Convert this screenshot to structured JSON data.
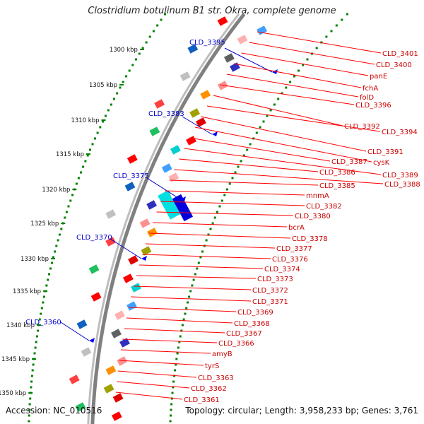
{
  "title": "Clostridium botulinum B1 str. Okra, complete genome",
  "footer": {
    "accession": "Accession: NC_010516",
    "summary": "Topology: circular; Length: 3,958,233 bp; Genes: 3,761"
  },
  "colors": {
    "backbone": "#808080",
    "forward_gene": "#ff0000",
    "label_red": "#cc0000",
    "label_blue": "#0000cc",
    "tick_dot": "#008000"
  },
  "kbp_ticks": [
    "1300 kbp",
    "1305 kbp",
    "1310 kbp",
    "1315 kbp",
    "1320 kbp",
    "1325 kbp",
    "1330 kbp",
    "1335 kbp",
    "1340 kbp",
    "1345 kbp",
    "1350 kbp"
  ],
  "left_labels": [
    "CLD_3395",
    "CLD_3383",
    "CLD_3375",
    "CLD_3370",
    "CLD_3360"
  ],
  "right_labels": [
    "CLD_3401",
    "CLD_3400",
    "panE",
    "fchA",
    "folD",
    "CLD_3396",
    "CLD_3392",
    "CLD_3394",
    "CLD_3391",
    "cysK",
    "CLD_3387",
    "CLD_3389",
    "CLD_3386",
    "CLD_3388",
    "CLD_3385",
    "mnmA",
    "CLD_3382",
    "CLD_3380",
    "bcrA",
    "CLD_3378",
    "CLD_3377",
    "CLD_3376",
    "CLD_3374",
    "CLD_3373",
    "CLD_3372",
    "CLD_3371",
    "CLD_3369",
    "CLD_3368",
    "CLD_3367",
    "CLD_3366",
    "amyB",
    "tyrS",
    "CLD_3363",
    "CLD_3362",
    "CLD_3361"
  ]
}
